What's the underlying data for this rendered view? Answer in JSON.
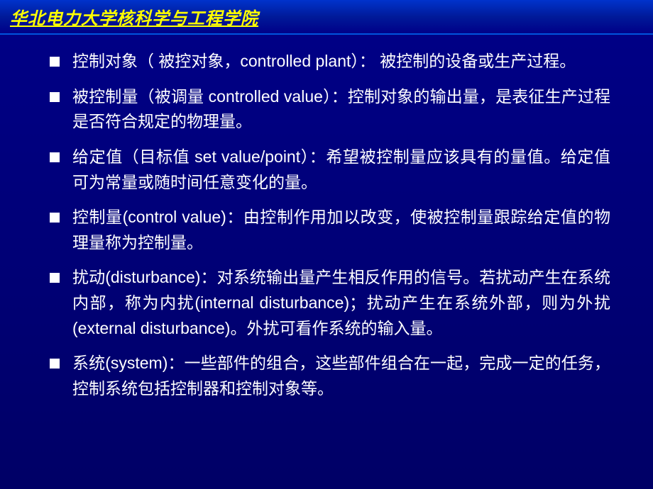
{
  "header": {
    "title": "华北电力大学核科学与工程学院"
  },
  "bullets": [
    {
      "text": "控制对象（ 被控对象，controlled plant）： 被控制的设备或生产过程。"
    },
    {
      "text": "被控制量（被调量 controlled value）：控制对象的输出量，是表征生产过程是否符合规定的物理量。"
    },
    {
      "text": "给定值（目标值 set value/point）：希望被控制量应该具有的量值。给定值可为常量或随时间任意变化的量。"
    },
    {
      "text": "控制量(control value)：由控制作用加以改变，使被控制量跟踪给定值的物理量称为控制量。"
    },
    {
      "text": "扰动(disturbance)：对系统输出量产生相反作用的信号。若扰动产生在系统内部，称为内扰(internal disturbance)；扰动产生在系统外部，则为外扰(external disturbance)。外扰可看作系统的输入量。"
    },
    {
      "text": "系统(system)：一些部件的组合，这些部件组合在一起，完成一定的任务，控制系统包括控制器和控制对象等。"
    }
  ],
  "styling": {
    "background_gradient_start": "#000088",
    "background_gradient_end": "#000066",
    "header_gradient_start": "#0033cc",
    "header_gradient_end": "#000088",
    "header_text_color": "#ffff00",
    "body_text_color": "#ffffff",
    "bullet_marker_color": "#ffffff",
    "header_font_size": 24,
    "body_font_size": 23,
    "line_height": 1.55
  }
}
